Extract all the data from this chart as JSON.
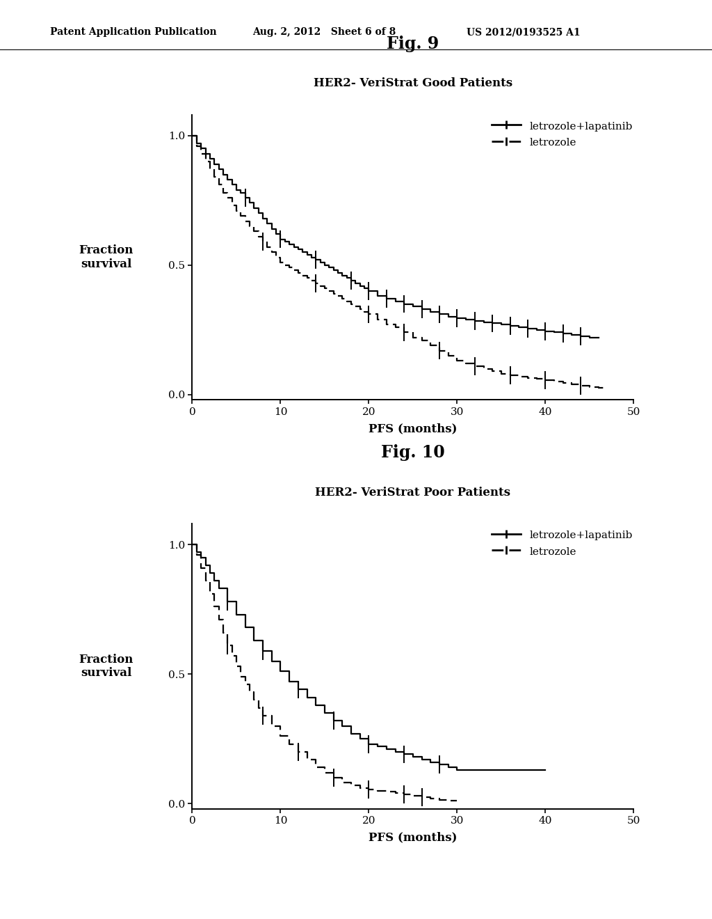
{
  "fig9_title": "Fig. 9",
  "fig9_subtitle": "HER2- VeriStrat Good Patients",
  "fig10_title": "Fig. 10",
  "fig10_subtitle": "HER2- VeriStrat Poor Patients",
  "xlabel": "PFS (months)",
  "ylabel_line1": "Fraction",
  "ylabel_line2": "survival",
  "xlim": [
    0,
    50
  ],
  "ylim": [
    -0.02,
    1.08
  ],
  "xticks": [
    0,
    10,
    20,
    30,
    40,
    50
  ],
  "yticks": [
    0.0,
    0.5,
    1.0
  ],
  "ytick_labels": [
    "0.0",
    "0.5",
    "1.0"
  ],
  "legend1": "letrozole+lapatinib",
  "legend2": "letrozole",
  "header_left": "Patent Application Publication",
  "header_mid": "Aug. 2, 2012   Sheet 6 of 8",
  "header_right": "US 2012/0193525 A1",
  "bg_color": "#ffffff",
  "line_color": "#000000",
  "fig9_solid_x": [
    0,
    0.5,
    1.0,
    1.5,
    2.0,
    2.5,
    3.0,
    3.5,
    4.0,
    4.5,
    5.0,
    5.5,
    6.0,
    6.5,
    7.0,
    7.5,
    8.0,
    8.5,
    9.0,
    9.5,
    10.0,
    10.5,
    11.0,
    11.5,
    12.0,
    12.5,
    13.0,
    13.5,
    14.0,
    14.5,
    15.0,
    15.5,
    16.0,
    16.5,
    17.0,
    17.5,
    18.0,
    18.5,
    19.0,
    19.5,
    20.0,
    21.0,
    22.0,
    23.0,
    24.0,
    25.0,
    26.0,
    27.0,
    28.0,
    29.0,
    30.0,
    31.0,
    32.0,
    33.0,
    34.0,
    35.0,
    36.0,
    37.0,
    38.0,
    39.0,
    40.0,
    41.0,
    42.0,
    43.0,
    44.0,
    45.0,
    46.0
  ],
  "fig9_solid_y": [
    1.0,
    0.97,
    0.95,
    0.93,
    0.91,
    0.89,
    0.87,
    0.85,
    0.83,
    0.81,
    0.79,
    0.78,
    0.76,
    0.74,
    0.72,
    0.7,
    0.68,
    0.66,
    0.64,
    0.62,
    0.6,
    0.59,
    0.58,
    0.57,
    0.56,
    0.55,
    0.54,
    0.53,
    0.52,
    0.51,
    0.5,
    0.49,
    0.48,
    0.47,
    0.46,
    0.45,
    0.44,
    0.43,
    0.42,
    0.41,
    0.4,
    0.38,
    0.37,
    0.36,
    0.35,
    0.34,
    0.33,
    0.32,
    0.31,
    0.3,
    0.295,
    0.29,
    0.285,
    0.28,
    0.275,
    0.27,
    0.265,
    0.26,
    0.255,
    0.25,
    0.245,
    0.24,
    0.235,
    0.23,
    0.225,
    0.22,
    0.22
  ],
  "fig9_dashed_x": [
    0,
    0.5,
    1.0,
    1.5,
    2.0,
    2.5,
    3.0,
    3.5,
    4.0,
    4.5,
    5.0,
    5.5,
    6.0,
    6.5,
    7.0,
    7.5,
    8.0,
    8.5,
    9.0,
    9.5,
    10.0,
    10.5,
    11.0,
    11.5,
    12.0,
    12.5,
    13.0,
    13.5,
    14.0,
    14.5,
    15.0,
    15.5,
    16.0,
    16.5,
    17.0,
    17.5,
    18.0,
    18.5,
    19.0,
    19.5,
    20.0,
    21.0,
    22.0,
    23.0,
    24.0,
    25.0,
    26.0,
    27.0,
    28.0,
    29.0,
    30.0,
    31.0,
    32.0,
    33.0,
    34.0,
    35.0,
    36.0,
    37.0,
    38.0,
    39.0,
    40.0,
    41.0,
    42.0,
    43.0,
    44.0,
    45.0,
    46.0,
    47.0
  ],
  "fig9_dashed_y": [
    1.0,
    0.96,
    0.93,
    0.9,
    0.87,
    0.84,
    0.81,
    0.78,
    0.76,
    0.73,
    0.71,
    0.69,
    0.67,
    0.65,
    0.63,
    0.61,
    0.59,
    0.57,
    0.55,
    0.53,
    0.51,
    0.5,
    0.49,
    0.48,
    0.47,
    0.46,
    0.45,
    0.44,
    0.43,
    0.42,
    0.41,
    0.4,
    0.39,
    0.38,
    0.37,
    0.36,
    0.35,
    0.34,
    0.33,
    0.32,
    0.31,
    0.29,
    0.27,
    0.26,
    0.24,
    0.22,
    0.21,
    0.19,
    0.17,
    0.15,
    0.13,
    0.12,
    0.11,
    0.1,
    0.09,
    0.08,
    0.075,
    0.07,
    0.065,
    0.06,
    0.055,
    0.05,
    0.045,
    0.04,
    0.035,
    0.03,
    0.025,
    0.025
  ],
  "fig9_solid_censor": [
    6,
    10,
    14,
    18,
    20,
    22,
    24,
    26,
    28,
    30,
    32,
    34,
    36,
    38,
    40,
    42,
    44
  ],
  "fig9_dashed_censor": [
    8,
    14,
    20,
    24,
    28,
    32,
    36,
    40,
    44
  ],
  "fig10_solid_x": [
    0,
    0.5,
    1.0,
    1.5,
    2.0,
    2.5,
    3.0,
    4.0,
    5.0,
    6.0,
    7.0,
    8.0,
    9.0,
    10.0,
    11.0,
    12.0,
    13.0,
    14.0,
    15.0,
    16.0,
    17.0,
    18.0,
    19.0,
    20.0,
    21.0,
    22.0,
    23.0,
    24.0,
    25.0,
    26.0,
    27.0,
    28.0,
    29.0,
    30.0,
    40.0
  ],
  "fig10_solid_y": [
    1.0,
    0.97,
    0.95,
    0.92,
    0.89,
    0.86,
    0.83,
    0.78,
    0.73,
    0.68,
    0.63,
    0.59,
    0.55,
    0.51,
    0.47,
    0.44,
    0.41,
    0.38,
    0.35,
    0.32,
    0.3,
    0.27,
    0.25,
    0.23,
    0.22,
    0.21,
    0.2,
    0.19,
    0.18,
    0.17,
    0.16,
    0.15,
    0.14,
    0.13,
    0.13
  ],
  "fig10_dashed_x": [
    0,
    0.5,
    1.0,
    1.5,
    2.0,
    2.5,
    3.0,
    3.5,
    4.0,
    4.5,
    5.0,
    5.5,
    6.0,
    6.5,
    7.0,
    7.5,
    8.0,
    9.0,
    10.0,
    11.0,
    12.0,
    13.0,
    14.0,
    15.0,
    16.0,
    17.0,
    18.0,
    19.0,
    20.0,
    21.0,
    22.0,
    23.0,
    24.0,
    25.0,
    26.0,
    27.0,
    28.0,
    29.0,
    30.0
  ],
  "fig10_dashed_y": [
    1.0,
    0.96,
    0.91,
    0.86,
    0.81,
    0.76,
    0.71,
    0.66,
    0.61,
    0.57,
    0.53,
    0.49,
    0.46,
    0.43,
    0.4,
    0.37,
    0.34,
    0.3,
    0.26,
    0.23,
    0.2,
    0.17,
    0.14,
    0.12,
    0.1,
    0.08,
    0.07,
    0.06,
    0.055,
    0.05,
    0.045,
    0.04,
    0.035,
    0.03,
    0.025,
    0.02,
    0.015,
    0.01,
    0.01
  ],
  "fig10_solid_censor": [
    4,
    8,
    12,
    16,
    20,
    24,
    28
  ],
  "fig10_dashed_censor": [
    4,
    8,
    12,
    16,
    20,
    24,
    26
  ]
}
